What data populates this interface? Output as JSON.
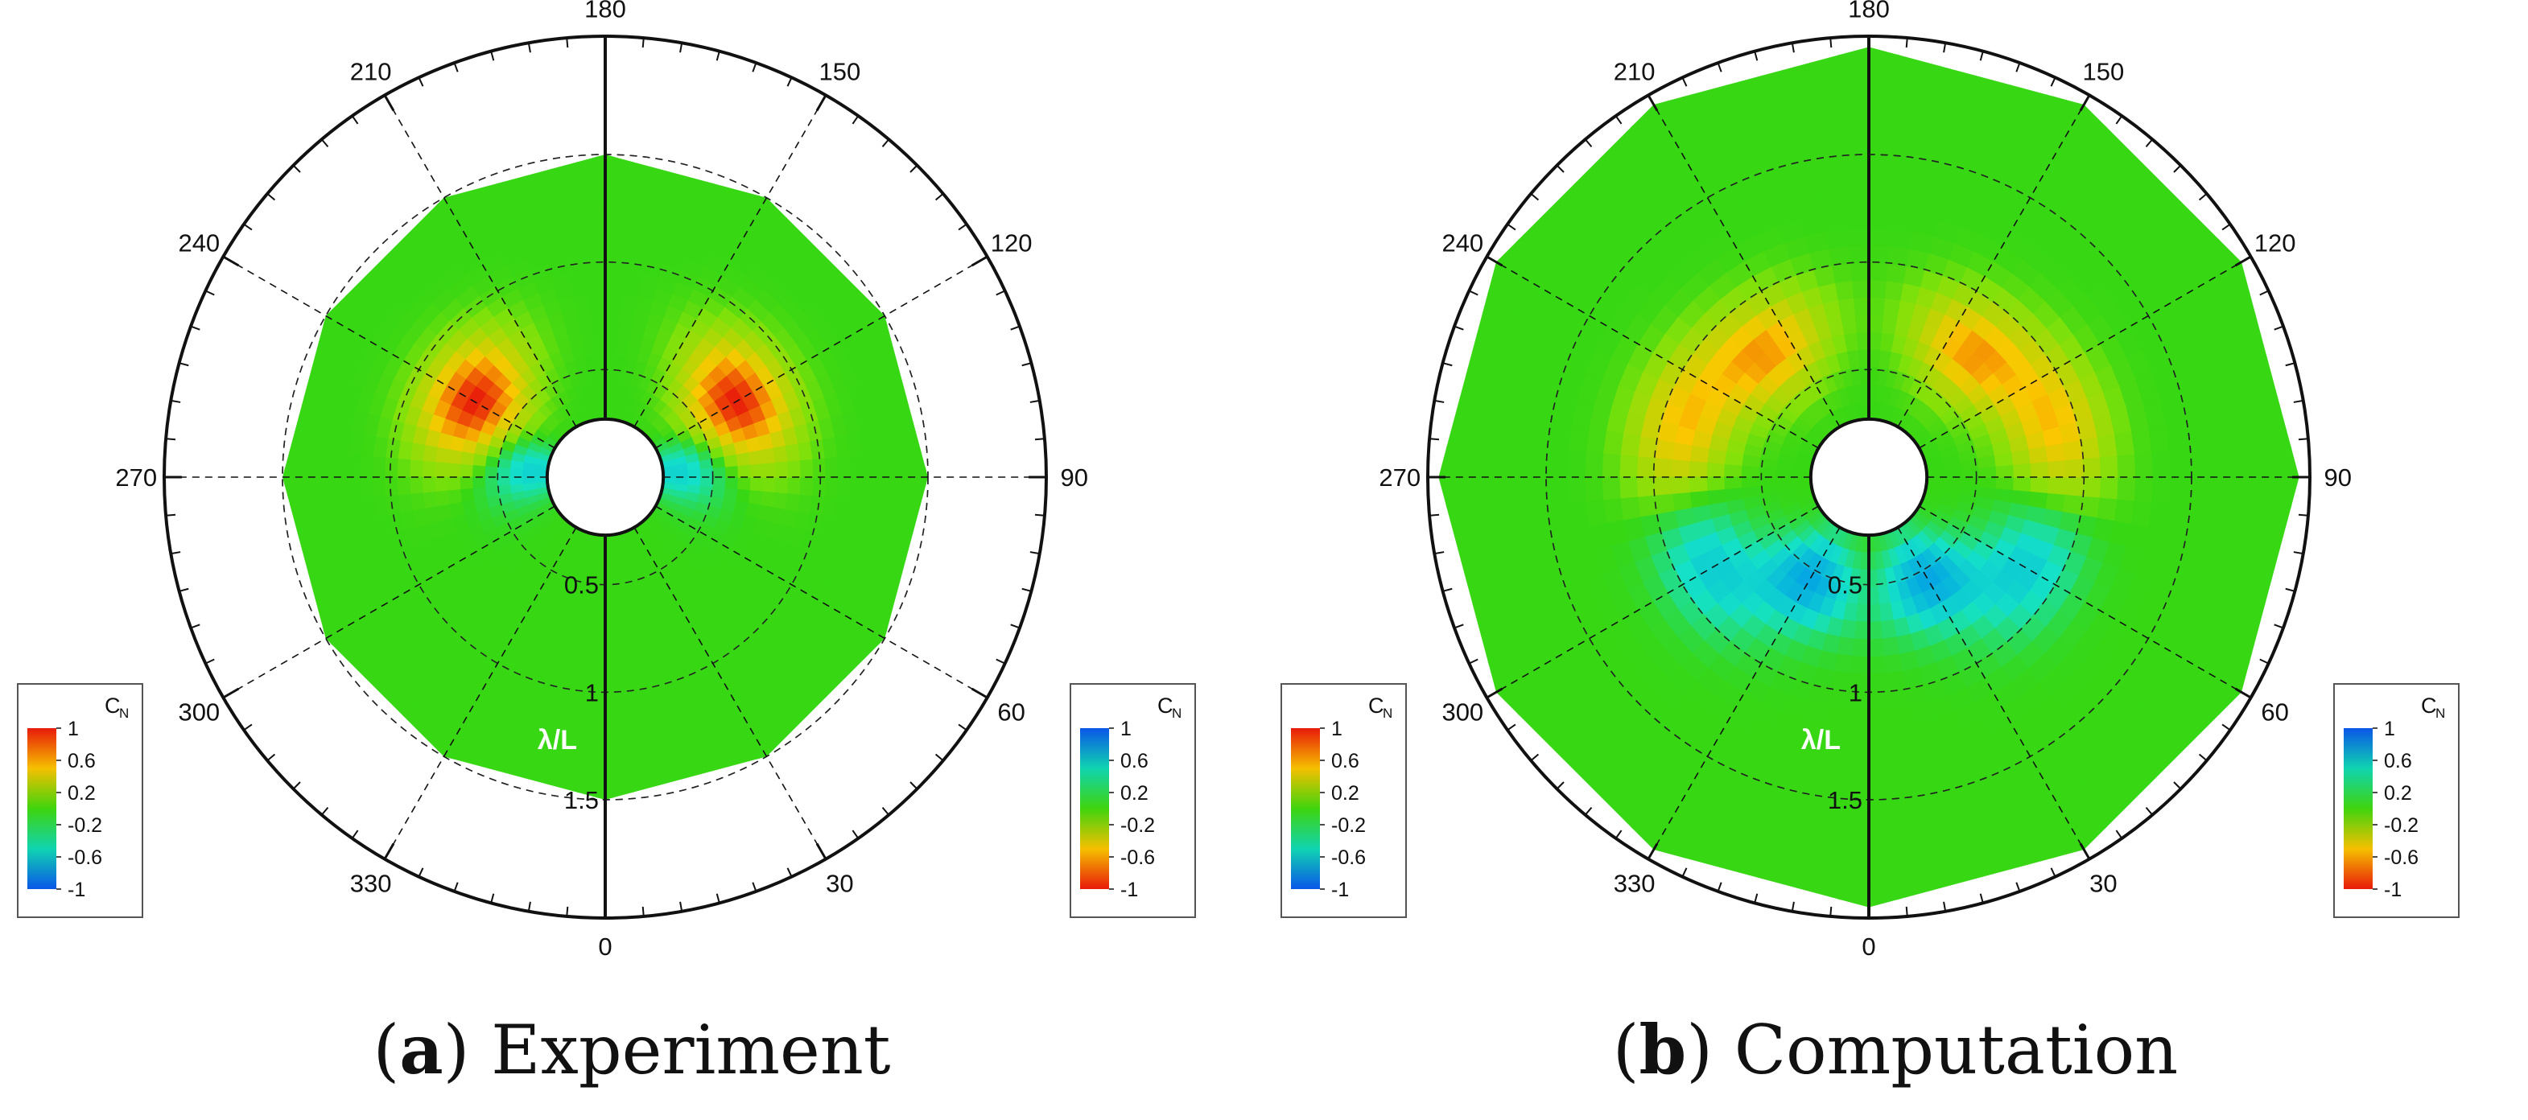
{
  "figure": {
    "panels": [
      {
        "label": "a",
        "caption": "Experiment"
      },
      {
        "label": "b",
        "caption": "Computation"
      }
    ]
  },
  "chart_data": [
    {
      "type": "heatmap",
      "projection": "polar",
      "subtitle": "(a) Experiment",
      "angle_axis": {
        "ticks": [
          0,
          30,
          60,
          90,
          120,
          150,
          180,
          210,
          240,
          270,
          300,
          330
        ],
        "unit": "deg",
        "direction": "counterclockwise",
        "zero": "bottom"
      },
      "radial_axis": {
        "label": "λ/L",
        "ticks": [
          0.5,
          1,
          1.5
        ],
        "range": [
          0.25,
          2.05
        ]
      },
      "grid": true,
      "colorbars": [
        {
          "title": "C",
          "subscript": "N",
          "position": "left",
          "ticks": [
            1,
            0.6,
            0.2,
            -0.2,
            -0.6,
            -1
          ],
          "colors": [
            "#e81a0a",
            "#f5c000",
            "#3fd40e",
            "#10d4b0",
            "#0a56e8"
          ]
        },
        {
          "title": "C",
          "subscript": "N",
          "position": "right",
          "ticks": [
            1,
            0.6,
            0.2,
            -0.2,
            -0.6,
            -1
          ],
          "colors": [
            "#0a56e8",
            "#10d4b0",
            "#3fd40e",
            "#f5c000",
            "#e81a0a"
          ]
        }
      ],
      "data_range": {
        "r": [
          0.27,
          1.5
        ]
      },
      "background_value": 0.1,
      "features": [
        {
          "angle": 240,
          "r": 0.7,
          "value": 1.0,
          "note": "peak"
        },
        {
          "angle": 120,
          "r": 0.7,
          "value": 1.0,
          "note": "peak"
        },
        {
          "angle": 265,
          "r": 0.35,
          "value": -0.3
        },
        {
          "angle": 95,
          "r": 0.35,
          "value": -0.3
        }
      ]
    },
    {
      "type": "heatmap",
      "projection": "polar",
      "subtitle": "(b) Computation",
      "angle_axis": {
        "ticks": [
          0,
          30,
          60,
          90,
          120,
          150,
          180,
          210,
          240,
          270,
          300,
          330
        ],
        "unit": "deg",
        "direction": "counterclockwise",
        "zero": "bottom"
      },
      "radial_axis": {
        "label": "λ/L",
        "ticks": [
          0.5,
          1,
          1.5
        ],
        "range": [
          0.25,
          2.05
        ]
      },
      "grid": true,
      "colorbars": [
        {
          "title": "C",
          "subscript": "N",
          "position": "left",
          "ticks": [
            1,
            0.6,
            0.2,
            -0.2,
            -0.6,
            -1
          ],
          "colors": [
            "#e81a0a",
            "#f5c000",
            "#3fd40e",
            "#10d4b0",
            "#0a56e8"
          ]
        },
        {
          "title": "C",
          "subscript": "N",
          "position": "right",
          "ticks": [
            1,
            0.6,
            0.2,
            -0.2,
            -0.6,
            -1
          ],
          "colors": [
            "#0a56e8",
            "#10d4b0",
            "#3fd40e",
            "#f5c000",
            "#e81a0a"
          ]
        }
      ],
      "data_range": {
        "r": [
          0.27,
          2.0
        ]
      },
      "background_value": 0.1,
      "features": [
        {
          "angle": 220,
          "r": 0.75,
          "value": 0.7
        },
        {
          "angle": 140,
          "r": 0.75,
          "value": 0.7
        },
        {
          "angle": 255,
          "r": 0.9,
          "value": 0.6
        },
        {
          "angle": 105,
          "r": 0.9,
          "value": 0.6
        },
        {
          "angle": 330,
          "r": 0.55,
          "value": -0.5
        },
        {
          "angle": 30,
          "r": 0.55,
          "value": -0.5
        },
        {
          "angle": 300,
          "r": 0.85,
          "value": -0.3
        },
        {
          "angle": 60,
          "r": 0.85,
          "value": -0.3
        }
      ]
    }
  ]
}
